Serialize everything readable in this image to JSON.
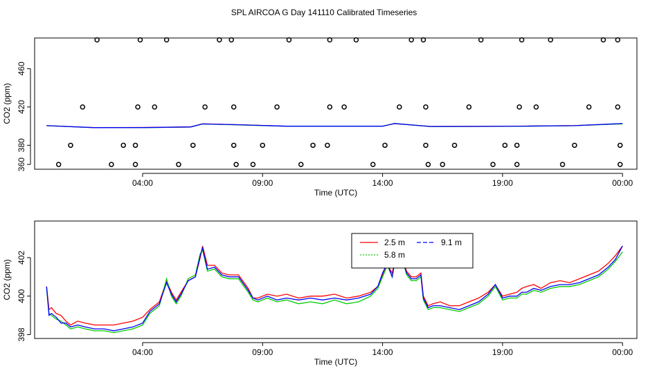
{
  "chart_data": [
    {
      "type": "scatter",
      "title": "SPL AIRCOA G  Day 141110  Calibrated Timeseries",
      "xlabel": "Time (UTC)",
      "ylabel": "CO2 (ppm)",
      "xlim": [
        -0.5,
        24.6
      ],
      "ylim": [
        355,
        492
      ],
      "xticks": [
        {
          "value": 4,
          "label": "04:00"
        },
        {
          "value": 9,
          "label": "09:00"
        },
        {
          "value": 14,
          "label": "14:00"
        },
        {
          "value": 19,
          "label": "19:00"
        },
        {
          "value": 24,
          "label": "00:00"
        }
      ],
      "yticks": [
        {
          "value": 360,
          "label": "360"
        },
        {
          "value": 380,
          "label": "380"
        },
        {
          "value": 420,
          "label": "420"
        },
        {
          "value": 460,
          "label": "460"
        }
      ],
      "scatter_points": [
        [
          0.5,
          360
        ],
        [
          1.0,
          380
        ],
        [
          1.5,
          420
        ],
        [
          2.1,
          490
        ],
        [
          2.7,
          360
        ],
        [
          3.2,
          380
        ],
        [
          3.7,
          380
        ],
        [
          3.8,
          420
        ],
        [
          3.9,
          490
        ],
        [
          3.7,
          360
        ],
        [
          4.5,
          420
        ],
        [
          5.0,
          490
        ],
        [
          5.5,
          360
        ],
        [
          6.1,
          380
        ],
        [
          6.6,
          420
        ],
        [
          7.2,
          490
        ],
        [
          7.7,
          490
        ],
        [
          7.8,
          420
        ],
        [
          7.8,
          380
        ],
        [
          7.9,
          360
        ],
        [
          8.6,
          360
        ],
        [
          9.0,
          380
        ],
        [
          9.6,
          420
        ],
        [
          10.1,
          490
        ],
        [
          10.6,
          360
        ],
        [
          11.1,
          380
        ],
        [
          11.7,
          380
        ],
        [
          11.8,
          420
        ],
        [
          11.8,
          490
        ],
        [
          12.4,
          420
        ],
        [
          12.9,
          490
        ],
        [
          13.6,
          360
        ],
        [
          14.1,
          380
        ],
        [
          14.7,
          420
        ],
        [
          15.2,
          490
        ],
        [
          15.7,
          490
        ],
        [
          15.8,
          420
        ],
        [
          15.8,
          380
        ],
        [
          15.9,
          360
        ],
        [
          16.5,
          360
        ],
        [
          17.0,
          380
        ],
        [
          17.6,
          420
        ],
        [
          18.1,
          490
        ],
        [
          18.6,
          360
        ],
        [
          19.1,
          380
        ],
        [
          19.6,
          380
        ],
        [
          19.7,
          420
        ],
        [
          19.8,
          490
        ],
        [
          19.6,
          360
        ],
        [
          20.4,
          420
        ],
        [
          21.0,
          490
        ],
        [
          21.5,
          360
        ],
        [
          22.0,
          380
        ],
        [
          22.6,
          420
        ],
        [
          23.2,
          490
        ],
        [
          23.8,
          490
        ],
        [
          23.8,
          420
        ],
        [
          23.9,
          380
        ],
        [
          23.9,
          360
        ]
      ],
      "lines": [
        {
          "color": "#ff0000",
          "x": [
            0,
            2,
            4,
            6,
            6.5,
            8,
            10,
            12,
            14,
            14.5,
            16,
            18,
            20,
            22,
            24
          ],
          "y": [
            400.5,
            398.5,
            398.6,
            399.2,
            402.4,
            401.5,
            400.0,
            400.0,
            400.0,
            402.6,
            399.7,
            399.8,
            400.1,
            400.6,
            402.6
          ]
        },
        {
          "color": "#00cc00",
          "x": [
            0,
            2,
            4,
            6,
            6.5,
            8,
            10,
            12,
            14,
            14.5,
            16,
            18,
            20,
            22,
            24
          ],
          "y": [
            400.4,
            398.3,
            398.4,
            399.0,
            402.2,
            401.3,
            399.8,
            399.8,
            399.8,
            402.8,
            399.5,
            399.6,
            399.9,
            400.4,
            402.4
          ]
        },
        {
          "color": "#0000ff",
          "x": [
            0,
            2,
            4,
            6,
            6.5,
            8,
            10,
            12,
            14,
            14.5,
            16,
            18,
            20,
            22,
            24
          ],
          "y": [
            400.5,
            398.4,
            398.5,
            399.1,
            402.3,
            401.4,
            399.9,
            399.9,
            399.9,
            402.7,
            399.6,
            399.7,
            400.0,
            400.5,
            402.7
          ]
        }
      ]
    },
    {
      "type": "line",
      "xlabel": "Time (UTC)",
      "ylabel": "CO2 (ppm)",
      "xlim": [
        -0.5,
        24.6
      ],
      "ylim": [
        397.8,
        403.9
      ],
      "xticks": [
        {
          "value": 4,
          "label": "04:00"
        },
        {
          "value": 9,
          "label": "09:00"
        },
        {
          "value": 14,
          "label": "14:00"
        },
        {
          "value": 19,
          "label": "19:00"
        },
        {
          "value": 24,
          "label": "00:00"
        }
      ],
      "yticks": [
        {
          "value": 398,
          "label": "398"
        },
        {
          "value": 400,
          "label": "400"
        },
        {
          "value": 402,
          "label": "402"
        }
      ],
      "legend": {
        "placement": "top-center",
        "entries": [
          "2.5 m",
          "5.8 m",
          "9.1 m"
        ]
      },
      "series": [
        {
          "name": "2.5 m",
          "color": "#ff0000",
          "x": [
            0.0,
            0.1,
            0.2,
            0.4,
            0.6,
            0.8,
            1.0,
            1.3,
            1.6,
            2.0,
            2.4,
            2.8,
            3.2,
            3.6,
            4.0,
            4.3,
            4.7,
            5.0,
            5.2,
            5.4,
            5.6,
            5.9,
            6.2,
            6.4,
            6.5,
            6.7,
            7.0,
            7.3,
            7.6,
            8.0,
            8.4,
            8.6,
            8.8,
            9.2,
            9.6,
            10.0,
            10.5,
            11.0,
            11.5,
            12.0,
            12.5,
            13.0,
            13.5,
            13.8,
            14.0,
            14.2,
            14.4,
            14.6,
            14.7,
            14.8,
            15.0,
            15.2,
            15.4,
            15.6,
            15.7,
            15.9,
            16.1,
            16.4,
            16.8,
            17.2,
            17.6,
            18.0,
            18.4,
            18.7,
            19.0,
            19.3,
            19.6,
            19.8,
            20.0,
            20.3,
            20.6,
            21.0,
            21.4,
            21.8,
            22.2,
            22.6,
            23.0,
            23.4,
            23.7,
            24.0
          ],
          "y": [
            400.5,
            399.3,
            399.4,
            399.1,
            399.0,
            398.7,
            398.5,
            398.7,
            398.6,
            398.5,
            398.5,
            398.5,
            398.6,
            398.7,
            398.9,
            399.3,
            399.7,
            400.8,
            400.2,
            399.8,
            400.2,
            400.8,
            401.0,
            402.0,
            402.6,
            401.6,
            401.6,
            401.2,
            401.1,
            401.1,
            400.4,
            399.9,
            399.9,
            400.1,
            400.0,
            400.1,
            399.9,
            400.0,
            400.0,
            400.1,
            399.9,
            400.0,
            400.2,
            400.5,
            401.1,
            401.6,
            401.2,
            402.3,
            403.0,
            402.0,
            401.3,
            401.0,
            401.0,
            401.2,
            400.0,
            399.5,
            399.6,
            399.7,
            399.5,
            399.5,
            399.7,
            399.9,
            400.2,
            400.6,
            400.0,
            400.1,
            400.2,
            400.4,
            400.5,
            400.6,
            400.4,
            400.7,
            400.8,
            400.7,
            400.9,
            401.1,
            401.3,
            401.7,
            402.1,
            402.6
          ]
        },
        {
          "name": "5.8 m",
          "color": "#00cc00",
          "x": [
            0.0,
            0.1,
            0.2,
            0.4,
            0.6,
            0.8,
            1.0,
            1.3,
            1.6,
            2.0,
            2.4,
            2.8,
            3.2,
            3.6,
            4.0,
            4.3,
            4.7,
            5.0,
            5.2,
            5.4,
            5.6,
            5.9,
            6.2,
            6.4,
            6.5,
            6.7,
            7.0,
            7.3,
            7.6,
            8.0,
            8.4,
            8.6,
            8.8,
            9.2,
            9.6,
            10.0,
            10.5,
            11.0,
            11.5,
            12.0,
            12.5,
            13.0,
            13.5,
            13.8,
            14.0,
            14.2,
            14.4,
            14.6,
            14.7,
            14.8,
            15.0,
            15.2,
            15.4,
            15.6,
            15.7,
            15.9,
            16.1,
            16.4,
            16.8,
            17.2,
            17.6,
            18.0,
            18.4,
            18.7,
            19.0,
            19.3,
            19.6,
            19.8,
            20.0,
            20.3,
            20.6,
            21.0,
            21.4,
            21.8,
            22.2,
            22.6,
            23.0,
            23.4,
            23.7,
            24.0
          ],
          "y": [
            400.4,
            399.1,
            399.0,
            398.8,
            398.7,
            398.5,
            398.3,
            398.4,
            398.3,
            398.2,
            398.2,
            398.1,
            398.2,
            398.3,
            398.5,
            399.1,
            399.5,
            400.9,
            400.0,
            399.6,
            400.0,
            400.9,
            401.1,
            402.2,
            402.4,
            401.3,
            401.4,
            401.0,
            400.9,
            400.9,
            400.2,
            399.8,
            399.7,
            399.9,
            399.7,
            399.8,
            399.6,
            399.7,
            399.6,
            399.8,
            399.6,
            399.7,
            400.0,
            400.4,
            401.0,
            401.6,
            401.0,
            402.5,
            403.2,
            402.1,
            401.1,
            400.8,
            400.8,
            401.0,
            399.8,
            399.3,
            399.4,
            399.4,
            399.3,
            399.2,
            399.4,
            399.6,
            400.0,
            400.5,
            399.8,
            399.9,
            399.9,
            400.1,
            400.1,
            400.3,
            400.2,
            400.4,
            400.5,
            400.5,
            400.6,
            400.8,
            401.0,
            401.4,
            401.8,
            402.3
          ]
        },
        {
          "name": "9.1 m",
          "color": "#0000ff",
          "x": [
            0.0,
            0.1,
            0.2,
            0.4,
            0.6,
            0.8,
            1.0,
            1.3,
            1.6,
            2.0,
            2.4,
            2.8,
            3.2,
            3.6,
            4.0,
            4.3,
            4.7,
            5.0,
            5.2,
            5.4,
            5.6,
            5.9,
            6.2,
            6.4,
            6.5,
            6.7,
            7.0,
            7.3,
            7.6,
            8.0,
            8.4,
            8.6,
            8.8,
            9.2,
            9.6,
            10.0,
            10.5,
            11.0,
            11.5,
            12.0,
            12.5,
            13.0,
            13.5,
            13.8,
            14.0,
            14.2,
            14.4,
            14.6,
            14.7,
            14.8,
            15.0,
            15.2,
            15.4,
            15.6,
            15.7,
            15.9,
            16.1,
            16.4,
            16.8,
            17.2,
            17.6,
            18.0,
            18.4,
            18.7,
            19.0,
            19.3,
            19.6,
            19.8,
            20.0,
            20.3,
            20.6,
            21.0,
            21.4,
            21.8,
            22.2,
            22.6,
            23.0,
            23.4,
            23.7,
            24.0
          ],
          "y": [
            400.5,
            399.0,
            399.1,
            398.9,
            398.6,
            398.6,
            398.4,
            398.5,
            398.4,
            398.3,
            398.3,
            398.2,
            398.3,
            398.4,
            398.6,
            399.2,
            399.6,
            400.7,
            400.1,
            399.7,
            400.1,
            400.8,
            401.0,
            402.1,
            402.5,
            401.4,
            401.5,
            401.1,
            401.0,
            401.0,
            400.3,
            399.9,
            399.8,
            400.0,
            399.8,
            399.9,
            399.8,
            399.9,
            399.8,
            399.9,
            399.8,
            399.9,
            400.1,
            400.5,
            401.2,
            401.7,
            401.0,
            402.4,
            403.1,
            402.0,
            401.2,
            400.9,
            400.9,
            401.1,
            399.9,
            399.4,
            399.5,
            399.5,
            399.4,
            399.3,
            399.5,
            399.7,
            400.1,
            400.6,
            399.9,
            400.0,
            400.0,
            400.2,
            400.2,
            400.4,
            400.3,
            400.5,
            400.6,
            400.6,
            400.7,
            400.9,
            401.1,
            401.5,
            401.9,
            402.6
          ]
        }
      ]
    }
  ]
}
